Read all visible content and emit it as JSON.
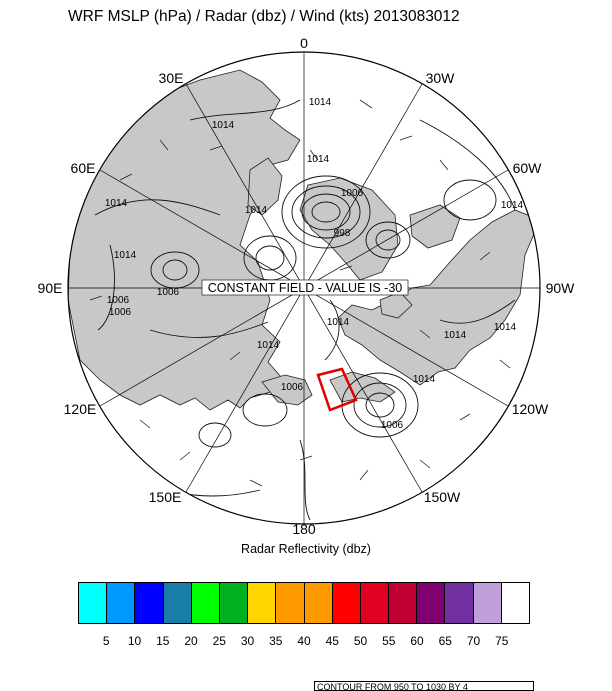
{
  "title": "WRF MSLP (hPa) / Radar (dbz) / Wind (kts) 2013083012",
  "longitude_labels": {
    "top": "0",
    "top_left": "30E",
    "top_right": "30W",
    "upper_left": "60E",
    "upper_right": "60W",
    "left": "90E",
    "right": "90W",
    "lower_left": "120E",
    "lower_right": "120W",
    "bottom_left": "150E",
    "bottom_right": "150W",
    "bottom": "180"
  },
  "field_note": "CONSTANT FIELD - VALUE IS -30",
  "isobar_labels": [
    "1014",
    "1014",
    "1014",
    "1006",
    "998",
    "1014",
    "1014",
    "1014",
    "1006",
    "1006",
    "1014",
    "1014",
    "1006",
    "1014",
    "1014",
    "1014",
    "1006",
    "1006",
    "1014"
  ],
  "colors": {
    "land": "#c8c8c8",
    "ocean": "#ffffff",
    "highlight_box": "#e00000"
  },
  "colorbar": {
    "label": "Radar Reflectivity (dbz)",
    "colors": [
      "#00ffff",
      "#0099ff",
      "#0000ff",
      "#1a7fa8",
      "#00ff00",
      "#00b020",
      "#ffd400",
      "#ff9900",
      "#ff9900",
      "#ff0000",
      "#e00020",
      "#c00030",
      "#800070",
      "#7030a0",
      "#c0a0d8",
      "#ffffff"
    ],
    "ticks": [
      "5",
      "10",
      "15",
      "20",
      "25",
      "30",
      "35",
      "40",
      "45",
      "50",
      "55",
      "60",
      "65",
      "70",
      "75"
    ]
  },
  "info_text": "CONTOUR FROM 950 TO 1030 BY 4"
}
